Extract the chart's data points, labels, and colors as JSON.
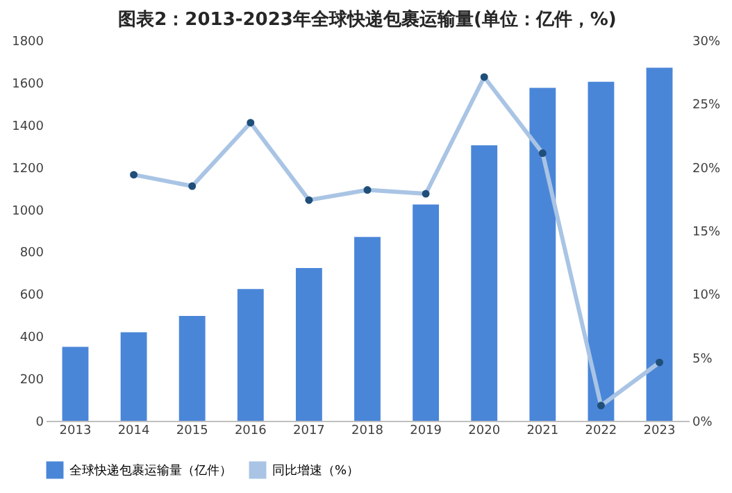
{
  "chart_data": {
    "type": "bar",
    "title": "图表2：2013-2023年全球快递包裹运输量(单位：亿件，%)",
    "categories": [
      "2013",
      "2014",
      "2015",
      "2016",
      "2017",
      "2018",
      "2019",
      "2020",
      "2021",
      "2022",
      "2023"
    ],
    "series": [
      {
        "name": "全球快递包裹运输量（亿件）",
        "color": "#4a86d8",
        "values": [
          350,
          419,
          496,
          623,
          723,
          870,
          1023,
          1303,
          1575,
          1604,
          1670
        ]
      },
      {
        "name": "同比增速（%）",
        "type": "line",
        "axis": "y2",
        "color": "#a9c4e4",
        "values": [
          null,
          19.4,
          18.5,
          23.5,
          17.4,
          18.2,
          17.9,
          27.1,
          21.1,
          1.2,
          4.6
        ]
      }
    ],
    "ylim": [
      0,
      1800
    ],
    "yticks": [
      0,
      200,
      400,
      600,
      800,
      1000,
      1200,
      1400,
      1600,
      1800
    ],
    "y2lim": [
      0,
      30
    ],
    "y2ticks": [
      {
        "value": 0,
        "label": "0%"
      },
      {
        "value": 5,
        "label": "5%"
      },
      {
        "value": 10,
        "label": "10%"
      },
      {
        "value": 15,
        "label": "15%"
      },
      {
        "value": 20,
        "label": "20%"
      },
      {
        "value": 25,
        "label": "25%"
      },
      {
        "value": 30,
        "label": "30%"
      }
    ],
    "legend": "bottom",
    "marker": "circle",
    "grid": false
  }
}
